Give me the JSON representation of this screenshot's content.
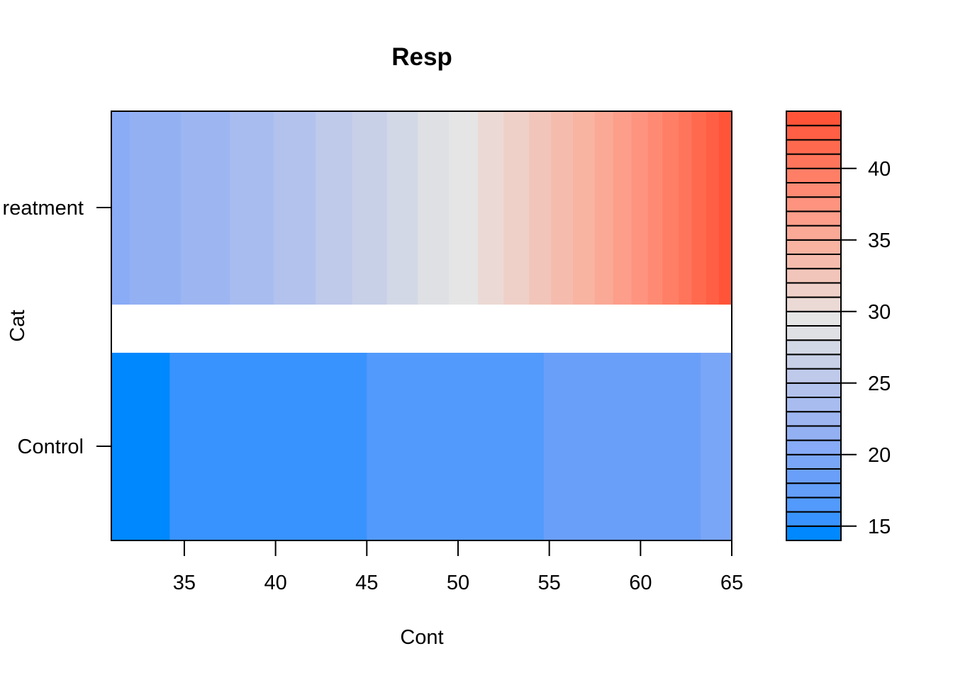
{
  "chart_data": {
    "type": "heatmap",
    "title": "Resp",
    "xlabel": "Cont",
    "ylabel": "Cat",
    "xlim": [
      31,
      65
    ],
    "x_ticks": [
      "35",
      "40",
      "45",
      "50",
      "55",
      "60",
      "65"
    ],
    "x_tick_values": [
      35,
      40,
      45,
      50,
      55,
      60,
      65
    ],
    "categories": [
      "Control",
      "Treatment"
    ],
    "y_tick_labels": [
      "Control",
      "reatment"
    ],
    "rows": [
      {
        "category": "Control",
        "x_breaks": [
          31,
          34.2,
          45,
          54.7,
          63.3,
          65
        ],
        "colors": [
          "#0088fe",
          "#3993fe",
          "#529afc",
          "#6a9ff9",
          "#7aa6f7"
        ]
      },
      {
        "category": "Treatment",
        "x_breaks": [
          31,
          32,
          34.8,
          37.5,
          39.9,
          42.2,
          44.2,
          46.1,
          47.8,
          49.5,
          51.1,
          52.5,
          53.9,
          55.1,
          56.3,
          57.5,
          58.5,
          59.5,
          60.4,
          61.2,
          62.1,
          62.8,
          63.6,
          64.3,
          65
        ],
        "colors": [
          "#8aabf6",
          "#93b0f3",
          "#9db5f1",
          "#a8bcef",
          "#b3c2ed",
          "#bfc9ea",
          "#c8d0e8",
          "#d3d8e6",
          "#dfe0e4",
          "#e5e5e5",
          "#ebd9d5",
          "#efd0c8",
          "#f2c5ba",
          "#f5bcad",
          "#f8b3a1",
          "#faa996",
          "#fc9e8a",
          "#fe947f",
          "#ff8a73",
          "#ff7f66",
          "#ff755b",
          "#ff6a4f",
          "#ff5f44",
          "#ff5438"
        ]
      }
    ],
    "colorkey": {
      "breaks": [
        14,
        15,
        16,
        17,
        18,
        19,
        20,
        21,
        22,
        23,
        24,
        25,
        26,
        27,
        28,
        29,
        30,
        31,
        32,
        33,
        34,
        35,
        36,
        37,
        38,
        39,
        40,
        41,
        42,
        43,
        44
      ],
      "colors": [
        "#0088fe",
        "#3993fe",
        "#529afc",
        "#639ef9",
        "#6a9ff9",
        "#7aa6f7",
        "#87abf6",
        "#93b0f3",
        "#9db5f1",
        "#a8bcef",
        "#b3c2ed",
        "#bfc9ea",
        "#c8d0e8",
        "#d3d8e6",
        "#dfe0e4",
        "#e5e5e5",
        "#ebd9d5",
        "#efd0c8",
        "#f2c5ba",
        "#f5bcad",
        "#f8b3a1",
        "#faa996",
        "#fc9e8a",
        "#fe947f",
        "#ff8a73",
        "#ff7f66",
        "#ff755b",
        "#ff6a4f",
        "#ff5f44",
        "#ff5438"
      ],
      "ticks": [
        "15",
        "20",
        "25",
        "30",
        "35",
        "40"
      ],
      "tick_values": [
        15,
        20,
        25,
        30,
        35,
        40
      ]
    }
  }
}
